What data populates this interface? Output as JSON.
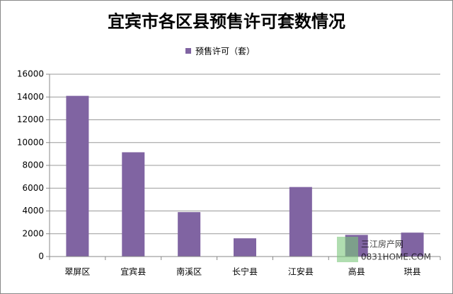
{
  "chart_data": {
    "type": "bar",
    "title": "宜宾市各区县预售许可套数情况",
    "categories": [
      "翠屏区",
      "宜宾县",
      "南溪区",
      "长宁县",
      "江安县",
      "高县",
      "珙县"
    ],
    "series": [
      {
        "name": "预售许可（套）",
        "color": "#8064a2",
        "values": [
          14100,
          9150,
          3900,
          1600,
          6100,
          1900,
          2100
        ]
      }
    ],
    "ylim": [
      0,
      16000
    ],
    "yticks": [
      0,
      2000,
      4000,
      6000,
      8000,
      10000,
      12000,
      14000,
      16000
    ],
    "grid": true,
    "legend": "top",
    "watermark": {
      "name": "三江房产网",
      "url": "0831HOME.COM"
    }
  }
}
